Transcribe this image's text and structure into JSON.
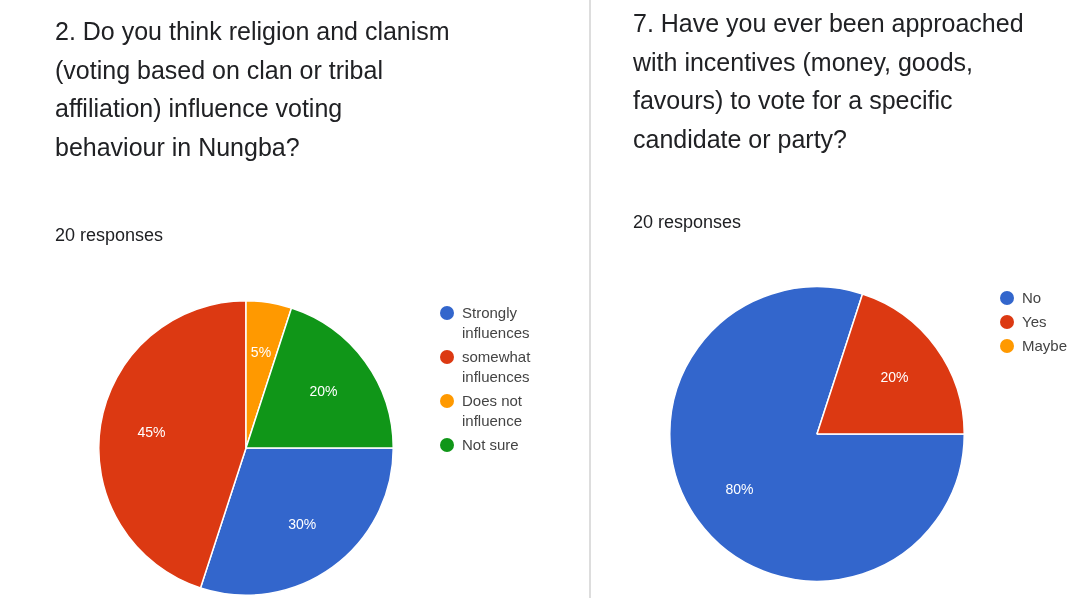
{
  "chart_data": [
    {
      "type": "pie",
      "title": "2. Do you think religion and clanism (voting based on clan or tribal affiliation) influence voting behaviour in Nungba?",
      "subtitle": "20 responses",
      "categories": [
        "Strongly influences",
        "somewhat influences",
        "Does not influence",
        "Not sure"
      ],
      "values": [
        30,
        45,
        5,
        20
      ],
      "colors": [
        "#3366cc",
        "#dc3912",
        "#ff9900",
        "#109618"
      ],
      "value_labels": [
        "30%",
        "45%",
        "5%",
        "20%"
      ],
      "legend": "right"
    },
    {
      "type": "pie",
      "title": "7. Have you ever been approached with incentives (money, goods, favours) to vote for a specific candidate or party?",
      "subtitle": "20 responses",
      "categories": [
        "No",
        "Yes",
        "Maybe"
      ],
      "values": [
        80,
        20,
        0
      ],
      "colors": [
        "#3366cc",
        "#dc3912",
        "#ff9900"
      ],
      "value_labels": [
        "80%",
        "20%",
        null
      ],
      "legend": "right"
    }
  ]
}
